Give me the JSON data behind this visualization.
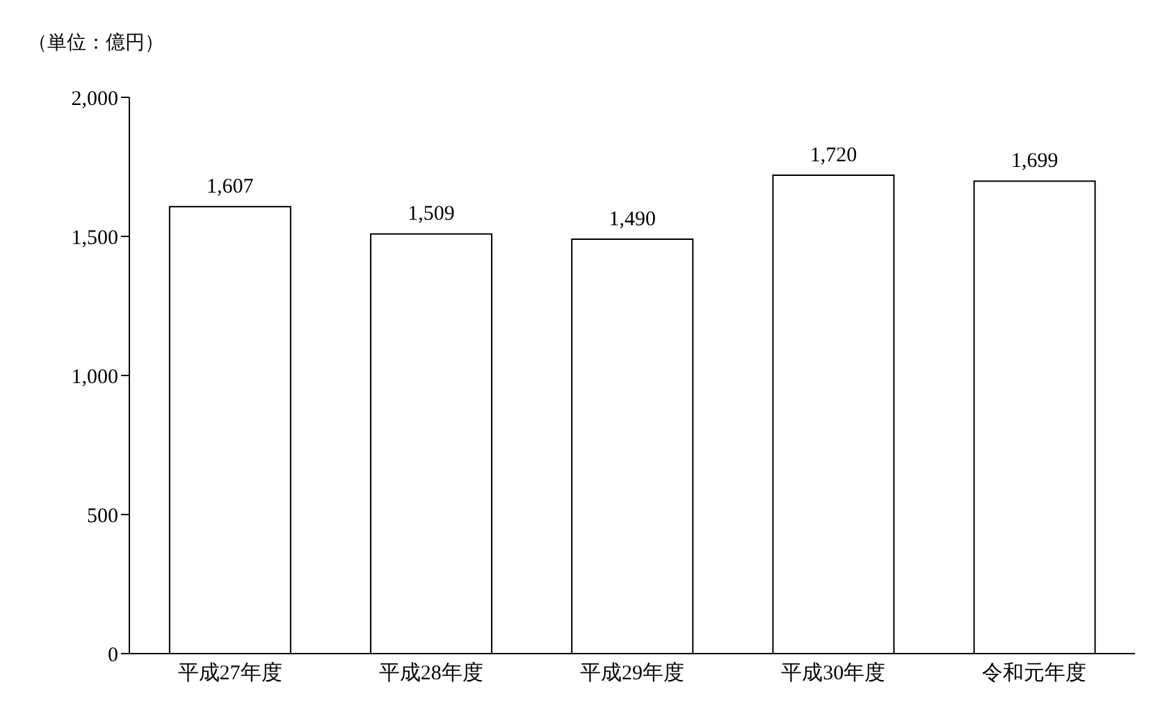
{
  "chart_data": {
    "type": "bar",
    "ylabel": "（単位：億円）",
    "categories": [
      "平成27年度",
      "平成28年度",
      "平成29年度",
      "平成30年度",
      "令和元年度"
    ],
    "values": [
      1607,
      1509,
      1490,
      1720,
      1699
    ],
    "color": "#ffffff",
    "ylim": [
      0,
      2000
    ],
    "yticks": [
      0,
      {
        "value": 500,
        "label": "500"
      },
      {
        "value": 1000,
        "label": "1,000"
      },
      {
        "value": 1500,
        "label": "1,500"
      },
      {
        "value": 2000,
        "label": "2,000"
      }
    ],
    "value_labels": [
      "1,607",
      "1,509",
      "1,490",
      "1,720",
      "1,699"
    ],
    "grid": false,
    "legend": false
  }
}
